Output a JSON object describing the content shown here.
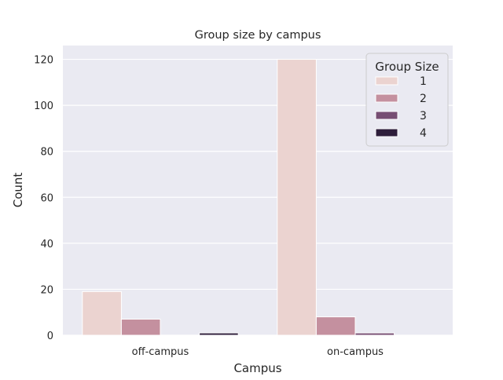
{
  "chart_data": {
    "type": "bar",
    "title": "Group size by campus",
    "xlabel": "Campus",
    "ylabel": "Count",
    "categories": [
      "off-campus",
      "on-campus"
    ],
    "ylim": [
      0,
      126
    ],
    "yticks": [
      0,
      20,
      40,
      60,
      80,
      100,
      120
    ],
    "grid": true,
    "legend": {
      "title": "Group Size",
      "placement": "top-right"
    },
    "series": [
      {
        "name": "1",
        "color": "#ebd3d0",
        "values": [
          19,
          120
        ]
      },
      {
        "name": "2",
        "color": "#c4909f",
        "values": [
          7,
          8
        ]
      },
      {
        "name": "3",
        "color": "#774e73",
        "values": [
          0,
          1
        ]
      },
      {
        "name": "4",
        "color": "#2e1e3b",
        "values": [
          1,
          0
        ]
      }
    ]
  }
}
